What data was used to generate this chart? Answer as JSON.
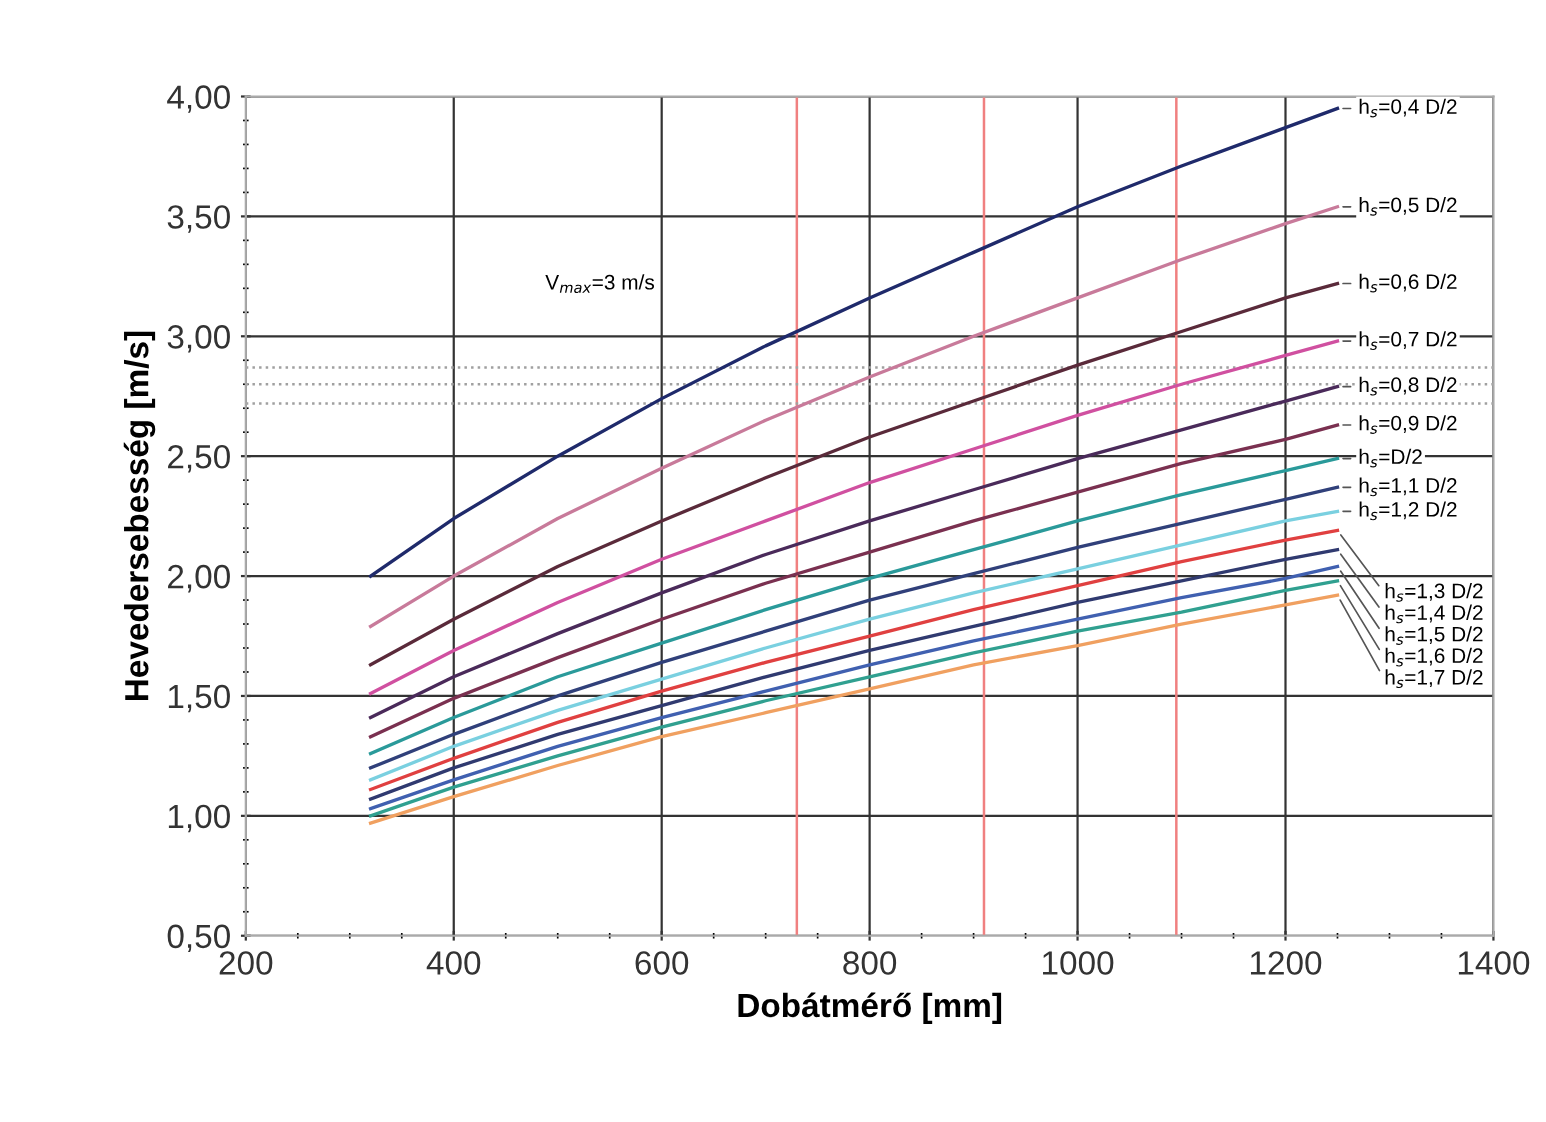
{
  "chart_data": {
    "type": "line",
    "xlabel": "Dobátmérő [mm]",
    "ylabel": "Hevedersebesség [m/s]",
    "x": [
      320,
      400,
      500,
      600,
      700,
      800,
      900,
      1000,
      1100,
      1200,
      1250
    ],
    "series": [
      {
        "name": "h$_{s}$=0,4 D/2",
        "color": "#1f2a6b",
        "values": [
          2.0,
          2.24,
          2.5,
          2.74,
          2.96,
          3.16,
          3.35,
          3.54,
          3.71,
          3.87,
          3.95
        ]
      },
      {
        "name": "h$_{s}$=0,5 D/2",
        "color": "#c87a9a",
        "values": [
          1.79,
          2.0,
          2.24,
          2.45,
          2.65,
          2.83,
          3.0,
          3.16,
          3.32,
          3.47,
          3.54
        ]
      },
      {
        "name": "h$_{s}$=0,6 D/2",
        "color": "#5a2a3a",
        "values": [
          1.63,
          1.82,
          2.04,
          2.23,
          2.41,
          2.58,
          2.73,
          2.88,
          3.02,
          3.16,
          3.22
        ]
      },
      {
        "name": "h$_{s}$=0,7 D/2",
        "color": "#d050a0",
        "values": [
          1.51,
          1.69,
          1.89,
          2.07,
          2.23,
          2.39,
          2.53,
          2.67,
          2.8,
          2.92,
          2.98
        ]
      },
      {
        "name": "h$_{s}$=0,8 D/2",
        "color": "#4a2a5a",
        "values": [
          1.41,
          1.58,
          1.76,
          1.93,
          2.09,
          2.23,
          2.36,
          2.49,
          2.61,
          2.73,
          2.79
        ]
      },
      {
        "name": "h$_{s}$=0,9 D/2",
        "color": "#7a3050",
        "values": [
          1.33,
          1.49,
          1.66,
          1.82,
          1.97,
          2.1,
          2.23,
          2.35,
          2.47,
          2.57,
          2.63
        ]
      },
      {
        "name": "h$_{s}$=D/2",
        "color": "#2a9a9a",
        "values": [
          1.26,
          1.41,
          1.58,
          1.72,
          1.86,
          1.99,
          2.11,
          2.23,
          2.34,
          2.44,
          2.49
        ]
      },
      {
        "name": "h$_{s}$=1,1 D/2",
        "color": "#30407a",
        "values": [
          1.2,
          1.34,
          1.5,
          1.64,
          1.77,
          1.9,
          2.01,
          2.12,
          2.22,
          2.32,
          2.37
        ]
      },
      {
        "name": "h$_{s}$=1,2 D/2",
        "color": "#7ad0e0",
        "values": [
          1.15,
          1.29,
          1.44,
          1.57,
          1.7,
          1.82,
          1.93,
          2.03,
          2.13,
          2.23,
          2.27
        ]
      },
      {
        "name": "h$_{s}$=1,3 D/2",
        "color": "#e04040",
        "values": [
          1.11,
          1.24,
          1.39,
          1.52,
          1.64,
          1.75,
          1.86,
          1.96,
          2.06,
          2.15,
          2.19
        ]
      },
      {
        "name": "h$_{s}$=1,4 D/2",
        "color": "#303a70",
        "values": [
          1.07,
          1.2,
          1.34,
          1.46,
          1.58,
          1.69,
          1.79,
          1.89,
          1.98,
          2.07,
          2.11
        ]
      },
      {
        "name": "h$_{s}$=1,5 D/2",
        "color": "#4060b0",
        "values": [
          1.03,
          1.15,
          1.29,
          1.41,
          1.52,
          1.63,
          1.73,
          1.82,
          1.91,
          1.99,
          2.04
        ]
      },
      {
        "name": "h$_{s}$=1,6 D/2",
        "color": "#30a090",
        "values": [
          1.0,
          1.12,
          1.25,
          1.37,
          1.48,
          1.58,
          1.68,
          1.77,
          1.85,
          1.94,
          1.98
        ]
      },
      {
        "name": "h$_{s}$=1,7 D/2",
        "color": "#f0a060",
        "values": [
          0.97,
          1.08,
          1.21,
          1.33,
          1.43,
          1.53,
          1.63,
          1.71,
          1.8,
          1.88,
          1.92
        ]
      }
    ],
    "xlim": [
      200,
      1400
    ],
    "xticks": [
      200,
      400,
      600,
      800,
      1000,
      1200,
      1400
    ],
    "ylim": [
      0.5,
      4.0
    ],
    "yticks": [
      {
        "value": 0.5,
        "label": "0,50"
      },
      {
        "value": 1.0,
        "label": "1,00"
      },
      {
        "value": 1.5,
        "label": "1,50"
      },
      {
        "value": 2.0,
        "label": "2,00"
      },
      {
        "value": 2.5,
        "label": "2,50"
      },
      {
        "value": 3.0,
        "label": "3,00"
      },
      {
        "value": 3.5,
        "label": "3,50"
      },
      {
        "value": 4.0,
        "label": "4,00"
      }
    ],
    "ref_lines": [
      {
        "axis": "x",
        "value": 730,
        "color": "#f08080"
      },
      {
        "axis": "x",
        "value": 910,
        "color": "#f08080"
      },
      {
        "axis": "x",
        "value": 1095,
        "color": "#f08080"
      },
      {
        "axis": "y",
        "value": 2.87,
        "color": "#a0a0a0",
        "line_style": "dotted"
      },
      {
        "axis": "y",
        "value": 2.8,
        "color": "#a0a0a0",
        "line_style": "dotted"
      },
      {
        "axis": "y",
        "value": 2.72,
        "color": "#a0a0a0",
        "line_style": "dotted"
      }
    ],
    "annotations": [
      "V$_{max}$=3 m/s"
    ],
    "grid": true,
    "legend": false,
    "marker": "none",
    "line_style": "solid"
  }
}
